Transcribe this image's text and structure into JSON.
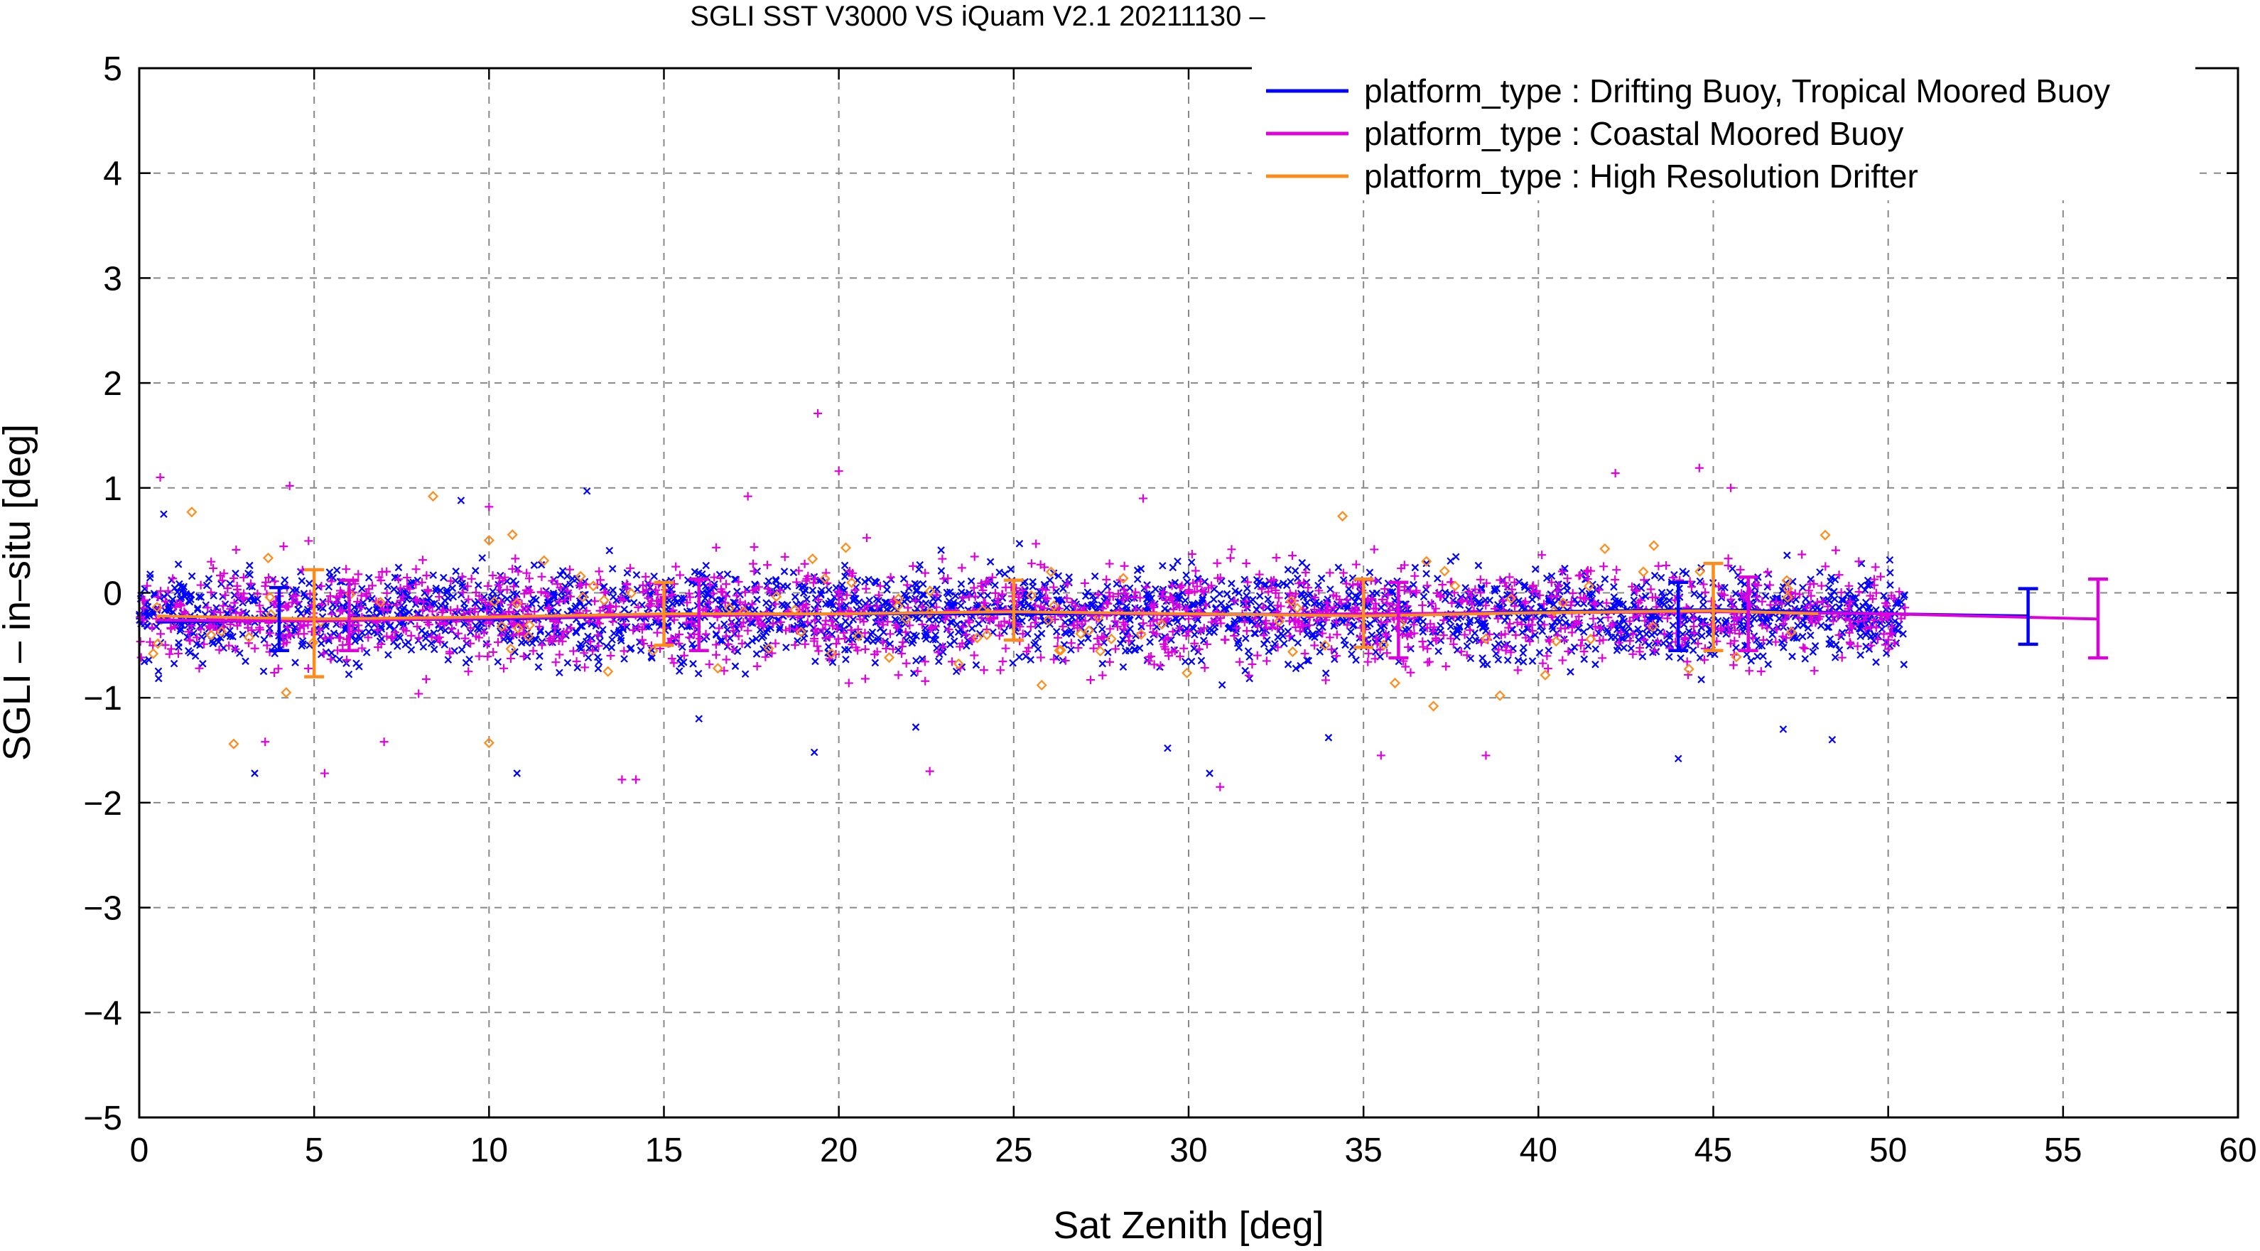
{
  "chart_data": {
    "type": "scatter",
    "title": "SGLI SST V3000 VS iQuam V2.1 20211130 –",
    "xlabel": "Sat Zenith [deg]",
    "ylabel": "SGLI – in–situ [deg]",
    "xlim": [
      0,
      60
    ],
    "ylim": [
      -5,
      5
    ],
    "xticks": [
      0,
      5,
      10,
      15,
      20,
      25,
      30,
      35,
      40,
      45,
      50,
      55,
      60
    ],
    "yticks": [
      -5,
      -4,
      -3,
      -2,
      -1,
      0,
      1,
      2,
      3,
      4,
      5
    ],
    "xtick_labels": [
      "0",
      "5",
      "10",
      "15",
      "20",
      "25",
      "30",
      "35",
      "40",
      "45",
      "50",
      "55",
      "60"
    ],
    "ytick_labels": [
      "−5",
      "−4",
      "−3",
      "−2",
      "−1",
      "0",
      "1",
      "2",
      "3",
      "4",
      "5"
    ],
    "grid": true,
    "legend_position": "top-right",
    "series": [
      {
        "name": "platform_type : Drifting Buoy, Tropical Moored Buoy",
        "color": "#0000ff",
        "marker": "x",
        "point_count_estimate": 2500,
        "point_x_range": [
          0,
          50.5
        ],
        "point_mean": -0.2,
        "point_spread": 0.3,
        "outliers": [
          [
            12.8,
            0.97
          ],
          [
            9.2,
            0.88
          ],
          [
            0.7,
            0.75
          ],
          [
            10.8,
            -1.72
          ],
          [
            3.3,
            -1.72
          ],
          [
            19.3,
            -1.52
          ],
          [
            29.4,
            -1.48
          ],
          [
            30.6,
            -1.72
          ],
          [
            44.0,
            -1.58
          ],
          [
            48.4,
            -1.4
          ],
          [
            34.0,
            -1.38
          ],
          [
            22.2,
            -1.28
          ],
          [
            16.0,
            -1.2
          ],
          [
            47.0,
            -1.3
          ]
        ],
        "mean_line": {
          "x": [
            0.5,
            5,
            10,
            15,
            20,
            25,
            30,
            35,
            40,
            45,
            50,
            54
          ],
          "y": [
            -0.28,
            -0.26,
            -0.25,
            -0.22,
            -0.2,
            -0.2,
            -0.2,
            -0.21,
            -0.18,
            -0.16,
            -0.2,
            -0.22
          ]
        },
        "error_bars": [
          {
            "x": 4,
            "mean": -0.25,
            "low": -0.55,
            "high": 0.05
          },
          {
            "x": 44,
            "mean": -0.2,
            "low": -0.55,
            "high": 0.1
          },
          {
            "x": 54,
            "mean": -0.22,
            "low": -0.49,
            "high": 0.04
          }
        ]
      },
      {
        "name": "platform_type : Coastal Moored Buoy",
        "color": "#dd00dd",
        "marker": "+",
        "point_count_estimate": 1500,
        "point_x_range": [
          0,
          50.5
        ],
        "point_mean": -0.2,
        "point_spread": 0.34,
        "outliers": [
          [
            19.4,
            1.71
          ],
          [
            20.0,
            1.16
          ],
          [
            42.2,
            1.14
          ],
          [
            44.6,
            1.19
          ],
          [
            0.6,
            1.1
          ],
          [
            4.3,
            1.02
          ],
          [
            10.0,
            0.82
          ],
          [
            13.8,
            -1.78
          ],
          [
            14.2,
            -1.78
          ],
          [
            30.9,
            -1.85
          ],
          [
            22.6,
            -1.7
          ],
          [
            5.3,
            -1.72
          ],
          [
            3.6,
            -1.42
          ],
          [
            7.0,
            -1.42
          ],
          [
            38.5,
            -1.55
          ],
          [
            35.5,
            -1.55
          ],
          [
            28.7,
            0.9
          ],
          [
            17.4,
            0.92
          ],
          [
            45.5,
            1.0
          ]
        ],
        "mean_line": {
          "x": [
            0.5,
            5,
            10,
            15,
            20,
            25,
            30,
            35,
            40,
            45,
            50,
            56
          ],
          "y": [
            -0.26,
            -0.27,
            -0.24,
            -0.22,
            -0.2,
            -0.18,
            -0.21,
            -0.2,
            -0.19,
            -0.18,
            -0.2,
            -0.25
          ]
        },
        "error_bars": [
          {
            "x": 6,
            "mean": -0.25,
            "low": -0.55,
            "high": 0.12
          },
          {
            "x": 16,
            "mean": -0.2,
            "low": -0.55,
            "high": 0.13
          },
          {
            "x": 36,
            "mean": -0.22,
            "low": -0.62,
            "high": 0.1
          },
          {
            "x": 46,
            "mean": -0.2,
            "low": -0.55,
            "high": 0.15
          },
          {
            "x": 56,
            "mean": -0.25,
            "low": -0.62,
            "high": 0.13
          }
        ]
      },
      {
        "name": "platform_type : High Resolution Drifter",
        "color": "#ff8c1a",
        "marker": "diamond",
        "point_count_estimate": 90,
        "point_x_range": [
          0,
          48.5
        ],
        "point_mean": -0.2,
        "point_spread": 0.4,
        "outliers": [
          [
            1.5,
            0.77
          ],
          [
            8.4,
            0.92
          ],
          [
            2.7,
            -1.44
          ],
          [
            10.0,
            -1.43
          ],
          [
            34.4,
            0.73
          ],
          [
            48.2,
            0.55
          ],
          [
            37.0,
            -1.08
          ],
          [
            38.9,
            -0.98
          ],
          [
            4.2,
            -0.95
          ],
          [
            0.4,
            -0.58
          ],
          [
            13.4,
            -0.75
          ],
          [
            36.8,
            0.3
          ],
          [
            41.9,
            0.42
          ],
          [
            43.3,
            0.45
          ],
          [
            43.0,
            0.2
          ],
          [
            10.0,
            0.5
          ],
          [
            20.2,
            0.43
          ],
          [
            25.8,
            -0.88
          ],
          [
            35.9,
            -0.86
          ],
          [
            33.9,
            -0.5
          ]
        ],
        "mean_line": {
          "x": [
            0.5,
            5,
            10,
            15,
            20,
            25,
            30,
            35,
            40,
            45,
            48
          ],
          "y": [
            -0.22,
            -0.25,
            -0.23,
            -0.2,
            -0.2,
            -0.18,
            -0.2,
            -0.22,
            -0.19,
            -0.17,
            -0.2
          ]
        },
        "error_bars": [
          {
            "x": 5,
            "mean": -0.28,
            "low": -0.8,
            "high": 0.22
          },
          {
            "x": 15,
            "mean": -0.2,
            "low": -0.5,
            "high": 0.1
          },
          {
            "x": 25,
            "mean": -0.2,
            "low": -0.45,
            "high": 0.12
          },
          {
            "x": 35,
            "mean": -0.22,
            "low": -0.52,
            "high": 0.13
          },
          {
            "x": 45,
            "mean": -0.17,
            "low": -0.55,
            "high": 0.28
          }
        ]
      }
    ]
  }
}
